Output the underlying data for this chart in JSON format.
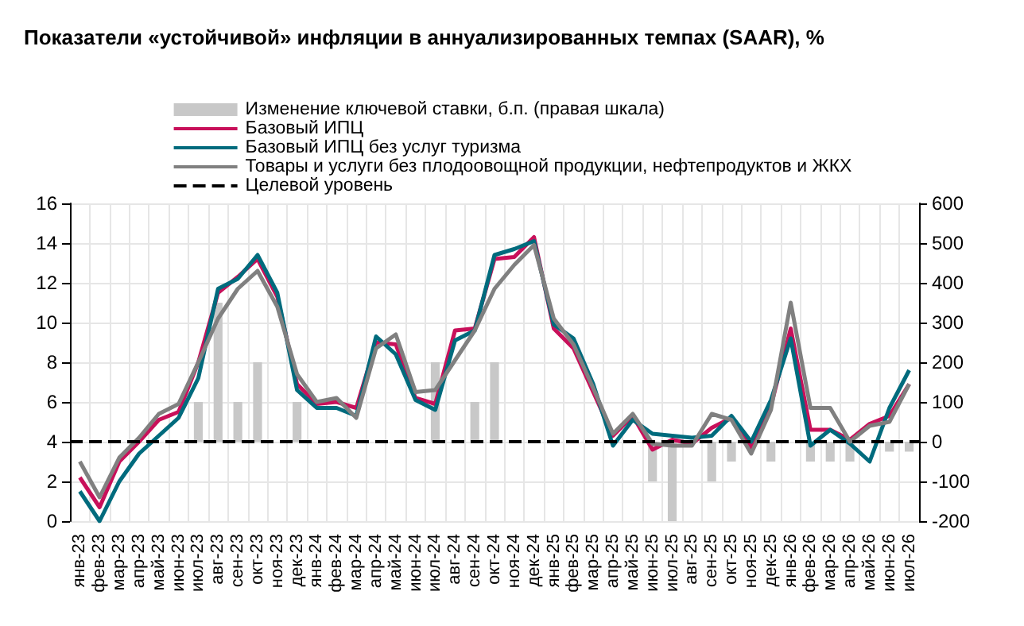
{
  "chart_data": {
    "type": "line",
    "title": "Показатели «устойчивой» инфляции в аннуализированных темпах (SAAR), %",
    "categories": [
      "янв-23",
      "фев-23",
      "мар-23",
      "апр-23",
      "май-23",
      "июн-23",
      "июл-23",
      "авг-23",
      "сен-23",
      "окт-23",
      "ноя-23",
      "дек-23",
      "янв-24",
      "фев-24",
      "мар-24",
      "апр-24",
      "май-24",
      "июн-24",
      "июл-24",
      "авг-24",
      "сен-24",
      "окт-24",
      "ноя-24",
      "дек-24",
      "янв-25",
      "фев-25",
      "мар-25",
      "апр-25",
      "май-25",
      "июн-25",
      "июл-25",
      "авг-25",
      "сен-25",
      "окт-25",
      "ноя-25",
      "дек-25",
      "янв-26",
      "фев-26",
      "мар-26",
      "апр-26",
      "май-26",
      "июн-26",
      "июл-26"
    ],
    "series": [
      {
        "name": "Изменение ключевой ставки, б.п. (правая шкала)",
        "type": "bar",
        "axis": "y2",
        "color": "#c8c8c8",
        "values": [
          null,
          null,
          null,
          null,
          null,
          null,
          100,
          350,
          100,
          200,
          null,
          100,
          null,
          null,
          null,
          null,
          null,
          null,
          200,
          null,
          100,
          200,
          null,
          null,
          null,
          null,
          null,
          null,
          null,
          -100,
          -200,
          null,
          -100,
          -50,
          null,
          -50,
          null,
          -50,
          -50,
          -50,
          null,
          -25,
          -25
        ]
      },
      {
        "name": "Базовый ИПЦ",
        "color": "#c8105a",
        "values": [
          2.2,
          0.7,
          3.0,
          4.0,
          5.1,
          5.5,
          8.0,
          11.5,
          12.3,
          13.2,
          11.3,
          6.9,
          5.9,
          6.0,
          5.7,
          9.0,
          8.9,
          6.2,
          5.9,
          9.6,
          9.7,
          13.2,
          13.3,
          14.3,
          9.7,
          8.7,
          6.5,
          4.3,
          5.3,
          3.6,
          4.1,
          3.9,
          4.7,
          5.2,
          3.7,
          5.8,
          9.7,
          4.6,
          4.6,
          4.1,
          4.9,
          5.3,
          6.9
        ]
      },
      {
        "name": "Базовый ИПЦ без услуг туризма",
        "color": "#006b7d",
        "values": [
          1.5,
          0.0,
          2.0,
          3.4,
          4.3,
          5.2,
          7.2,
          11.7,
          12.2,
          13.4,
          11.5,
          6.6,
          5.7,
          5.7,
          5.3,
          9.3,
          8.4,
          6.1,
          5.6,
          9.1,
          9.6,
          13.4,
          13.7,
          14.1,
          9.9,
          9.2,
          6.9,
          3.8,
          5.1,
          4.4,
          4.3,
          4.2,
          4.3,
          5.3,
          4.0,
          6.1,
          9.2,
          3.8,
          4.6,
          3.9,
          3.0,
          5.7,
          7.6
        ]
      },
      {
        "name": "Товары и услуги без плодоовощной продукции, нефтепродуктов и ЖКХ",
        "color": "#808080",
        "values": [
          3.0,
          1.2,
          3.2,
          4.2,
          5.4,
          5.9,
          8.0,
          10.2,
          11.7,
          12.6,
          10.8,
          7.4,
          6.0,
          6.2,
          5.2,
          8.7,
          9.4,
          6.5,
          6.6,
          8.1,
          9.6,
          11.7,
          12.9,
          13.9,
          10.2,
          8.9,
          6.7,
          4.4,
          5.4,
          3.9,
          3.8,
          3.8,
          5.4,
          5.1,
          3.4,
          5.6,
          11.0,
          5.7,
          5.7,
          4.0,
          4.8,
          5.0,
          6.9
        ]
      }
    ],
    "ref_lines": [
      {
        "axis": "y",
        "value": 4,
        "label": "Целевой уровень",
        "color": "#000000",
        "line_style": "dashed"
      }
    ],
    "ylim": [
      0,
      16
    ],
    "yticks": [
      0,
      2,
      4,
      6,
      8,
      10,
      12,
      14,
      16
    ],
    "y2lim": [
      -200,
      600
    ],
    "y2ticks": [
      -200,
      -100,
      0,
      100,
      200,
      300,
      400,
      500,
      600
    ],
    "grid": true,
    "legend": "top",
    "marker": "none",
    "line_style": "solid"
  }
}
